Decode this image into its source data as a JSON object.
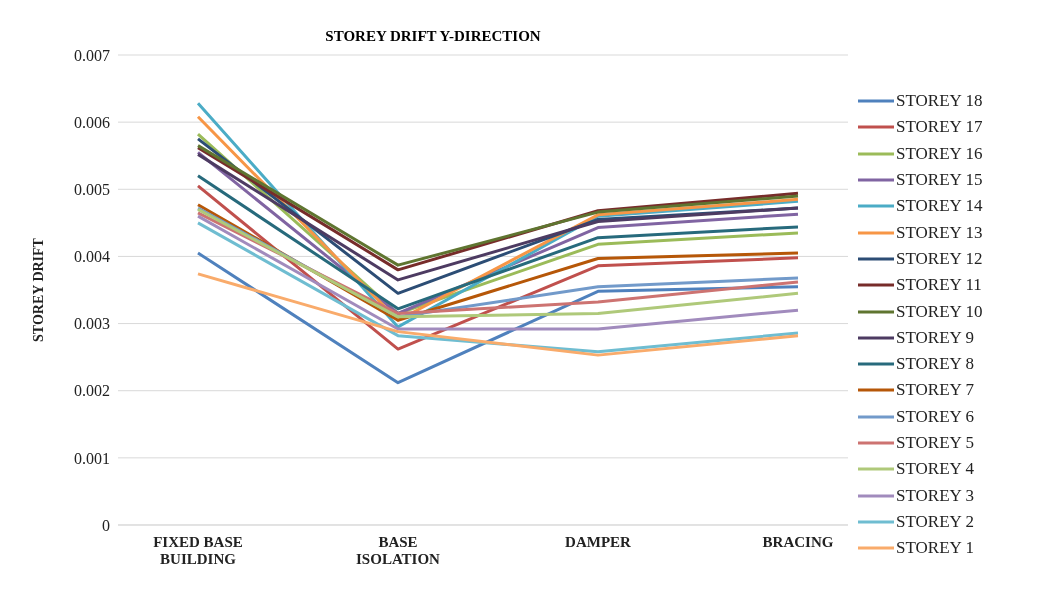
{
  "chart_data": {
    "type": "line",
    "title": "STOREY DRIFT  Y-DIRECTION",
    "ylabel": "STOREY DRIFT",
    "categories": [
      "FIXED BASE BUILDING",
      "BASE ISOLATION",
      "DAMPER",
      "BRACING"
    ],
    "series": [
      {
        "name": "STOREY 18",
        "color": "#4f81bd",
        "values": [
          0.00405,
          0.00212,
          0.00348,
          0.00355
        ]
      },
      {
        "name": "STOREY 17",
        "color": "#c0504d",
        "values": [
          0.00505,
          0.00262,
          0.00386,
          0.00398
        ]
      },
      {
        "name": "STOREY 16",
        "color": "#9bbb59",
        "values": [
          0.00582,
          0.00315,
          0.00418,
          0.00435
        ]
      },
      {
        "name": "STOREY 15",
        "color": "#8064a2",
        "values": [
          0.00555,
          0.00315,
          0.00443,
          0.00463
        ]
      },
      {
        "name": "STOREY 14",
        "color": "#4bacc6",
        "values": [
          0.00628,
          0.00295,
          0.0046,
          0.00482
        ]
      },
      {
        "name": "STOREY 13",
        "color": "#f79646",
        "values": [
          0.00608,
          0.00305,
          0.00462,
          0.00485
        ]
      },
      {
        "name": "STOREY 12",
        "color": "#2c4d75",
        "values": [
          0.00575,
          0.00345,
          0.00455,
          0.00472
        ]
      },
      {
        "name": "STOREY 11",
        "color": "#772c2a",
        "values": [
          0.00562,
          0.0038,
          0.00468,
          0.00494
        ]
      },
      {
        "name": "STOREY 10",
        "color": "#5f7530",
        "values": [
          0.00565,
          0.00387,
          0.00466,
          0.0049
        ]
      },
      {
        "name": "STOREY 9",
        "color": "#4d3b62",
        "values": [
          0.00552,
          0.00365,
          0.00452,
          0.00472
        ]
      },
      {
        "name": "STOREY 8",
        "color": "#276a7c",
        "values": [
          0.0052,
          0.00322,
          0.00428,
          0.00444
        ]
      },
      {
        "name": "STOREY 7",
        "color": "#b65708",
        "values": [
          0.00477,
          0.00305,
          0.00397,
          0.00405
        ]
      },
      {
        "name": "STOREY 6",
        "color": "#729aca",
        "values": [
          0.00472,
          0.0031,
          0.00355,
          0.00368
        ]
      },
      {
        "name": "STOREY 5",
        "color": "#cd7371",
        "values": [
          0.00465,
          0.00315,
          0.00332,
          0.00362
        ]
      },
      {
        "name": "STOREY 4",
        "color": "#afc97a",
        "values": [
          0.0047,
          0.0031,
          0.00315,
          0.00345
        ]
      },
      {
        "name": "STOREY 3",
        "color": "#a18bbd",
        "values": [
          0.0046,
          0.00292,
          0.00292,
          0.0032
        ]
      },
      {
        "name": "STOREY 2",
        "color": "#6fbdd1",
        "values": [
          0.0045,
          0.00282,
          0.00258,
          0.00286
        ]
      },
      {
        "name": "STOREY 1",
        "color": "#f9ab6b",
        "values": [
          0.00374,
          0.00288,
          0.00253,
          0.00282
        ]
      }
    ],
    "ylim": [
      0,
      0.007
    ],
    "yticks": [
      0,
      0.001,
      0.002,
      0.003,
      0.004,
      0.005,
      0.006,
      0.007
    ],
    "grid": "y",
    "legend": "right",
    "marker": "none",
    "line_style": "solid"
  }
}
